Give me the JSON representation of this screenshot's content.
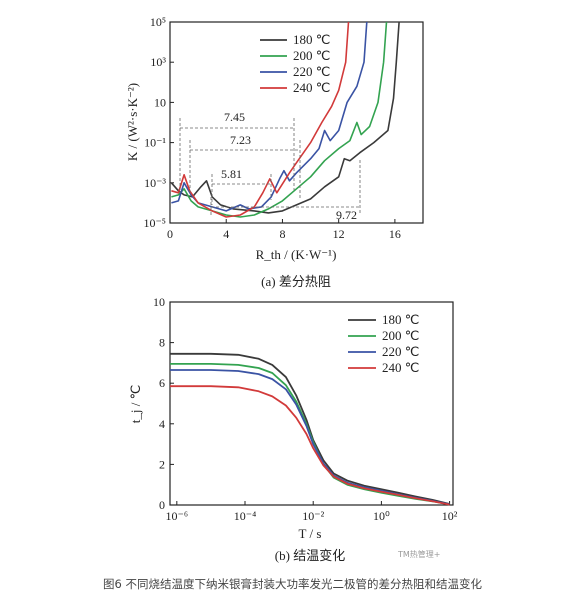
{
  "chart_data": [
    {
      "type": "line",
      "panel_caption": "(a) 差分热阻",
      "xlabel": "R_th / (K·W⁻¹)",
      "ylabel": "K / (W²·s·K⁻²)",
      "xlim": [
        0,
        18
      ],
      "ylim_log10": [
        -5,
        5
      ],
      "x_ticks": [
        "0",
        "4",
        "8",
        "12",
        "16"
      ],
      "y_ticks": [
        "10⁻⁵",
        "10⁻³",
        "10⁻¹",
        "10",
        "10³",
        "10⁵"
      ],
      "legend_position": "top-right",
      "series": [
        {
          "name": "180 ℃",
          "color": "#3a3a3a",
          "points": [
            [
              0.1,
              -3.0
            ],
            [
              0.6,
              -3.4
            ],
            [
              1.0,
              -3.6
            ],
            [
              1.6,
              -3.7
            ],
            [
              2.2,
              -3.2
            ],
            [
              2.6,
              -2.9
            ],
            [
              3.0,
              -3.7
            ],
            [
              3.6,
              -4.1
            ],
            [
              4.5,
              -4.3
            ],
            [
              6.0,
              -4.4
            ],
            [
              7.0,
              -4.5
            ],
            [
              8.0,
              -4.4
            ],
            [
              9.0,
              -4.1
            ],
            [
              10.0,
              -3.8
            ],
            [
              11.0,
              -3.2
            ],
            [
              12.0,
              -2.7
            ],
            [
              12.4,
              -1.8
            ],
            [
              12.8,
              -1.9
            ],
            [
              13.5,
              -1.5
            ],
            [
              14.5,
              -1.0
            ],
            [
              15.5,
              -0.4
            ],
            [
              15.9,
              1.2
            ],
            [
              16.1,
              3.0
            ],
            [
              16.3,
              5.0
            ]
          ]
        },
        {
          "name": "200 ℃",
          "color": "#33a350",
          "points": [
            [
              0.1,
              -3.7
            ],
            [
              0.6,
              -3.6
            ],
            [
              1.0,
              -3.3
            ],
            [
              1.5,
              -3.9
            ],
            [
              2.0,
              -4.2
            ],
            [
              3.0,
              -4.4
            ],
            [
              4.0,
              -4.6
            ],
            [
              5.0,
              -4.7
            ],
            [
              6.0,
              -4.6
            ],
            [
              7.0,
              -4.3
            ],
            [
              8.0,
              -3.9
            ],
            [
              9.0,
              -3.3
            ],
            [
              10.0,
              -2.7
            ],
            [
              11.0,
              -1.9
            ],
            [
              12.0,
              -1.3
            ],
            [
              12.8,
              -0.9
            ],
            [
              13.3,
              0.0
            ],
            [
              13.6,
              -0.6
            ],
            [
              14.2,
              -0.2
            ],
            [
              14.8,
              1.0
            ],
            [
              15.2,
              3.0
            ],
            [
              15.4,
              5.0
            ]
          ]
        },
        {
          "name": "220 ℃",
          "color": "#3a53a4",
          "points": [
            [
              0.1,
              -4.0
            ],
            [
              0.6,
              -3.9
            ],
            [
              1.0,
              -3.0
            ],
            [
              1.5,
              -3.6
            ],
            [
              2.0,
              -4.0
            ],
            [
              3.0,
              -4.2
            ],
            [
              4.0,
              -4.4
            ],
            [
              5.0,
              -4.1
            ],
            [
              5.6,
              -4.3
            ],
            [
              6.5,
              -4.2
            ],
            [
              7.2,
              -3.7
            ],
            [
              7.8,
              -2.8
            ],
            [
              8.1,
              -2.4
            ],
            [
              8.5,
              -2.9
            ],
            [
              9.0,
              -2.5
            ],
            [
              10.0,
              -1.8
            ],
            [
              10.6,
              -1.3
            ],
            [
              11.0,
              -0.4
            ],
            [
              11.4,
              -0.9
            ],
            [
              12.0,
              -0.4
            ],
            [
              12.6,
              1.0
            ],
            [
              13.3,
              1.8
            ],
            [
              13.8,
              3.0
            ],
            [
              14.0,
              5.0
            ]
          ]
        },
        {
          "name": "240 ℃",
          "color": "#d23a3a",
          "points": [
            [
              0.1,
              -3.4
            ],
            [
              0.6,
              -3.5
            ],
            [
              1.0,
              -2.6
            ],
            [
              1.4,
              -3.4
            ],
            [
              2.0,
              -4.0
            ],
            [
              3.0,
              -4.4
            ],
            [
              4.0,
              -4.7
            ],
            [
              5.0,
              -4.6
            ],
            [
              6.0,
              -4.2
            ],
            [
              6.6,
              -3.5
            ],
            [
              7.1,
              -2.8
            ],
            [
              7.6,
              -3.5
            ],
            [
              8.5,
              -2.5
            ],
            [
              9.0,
              -2.0
            ],
            [
              9.5,
              -1.5
            ],
            [
              10.0,
              -1.0
            ],
            [
              10.8,
              0.0
            ],
            [
              11.5,
              0.8
            ],
            [
              12.0,
              1.6
            ],
            [
              12.5,
              3.0
            ],
            [
              12.7,
              5.0
            ]
          ]
        }
      ],
      "annotations": [
        "7.45",
        "7.23",
        "5.81",
        "9.72"
      ]
    },
    {
      "type": "line",
      "panel_caption": "(b) 结温变化",
      "xlabel": "T / s",
      "ylabel": "t_j / ℃",
      "x_log10": [
        -6.2,
        2.1
      ],
      "ylim": [
        0,
        10
      ],
      "x_ticks": [
        "10⁻⁶",
        "10⁻⁴",
        "10⁻²",
        "10⁰",
        "10²"
      ],
      "y_ticks": [
        "0",
        "2",
        "4",
        "6",
        "8",
        "10"
      ],
      "legend_position": "top-right",
      "series": [
        {
          "name": "180 ℃",
          "color": "#3a3a3a",
          "points": [
            [
              -6.2,
              7.45
            ],
            [
              -5.0,
              7.45
            ],
            [
              -4.2,
              7.4
            ],
            [
              -3.6,
              7.2
            ],
            [
              -3.2,
              6.9
            ],
            [
              -2.8,
              6.3
            ],
            [
              -2.5,
              5.4
            ],
            [
              -2.2,
              4.2
            ],
            [
              -2.0,
              3.2
            ],
            [
              -1.7,
              2.2
            ],
            [
              -1.4,
              1.55
            ],
            [
              -1.0,
              1.2
            ],
            [
              -0.5,
              0.95
            ],
            [
              0.0,
              0.78
            ],
            [
              0.5,
              0.6
            ],
            [
              1.0,
              0.42
            ],
            [
              1.5,
              0.25
            ],
            [
              2.0,
              0.05
            ]
          ]
        },
        {
          "name": "200 ℃",
          "color": "#33a350",
          "points": [
            [
              -6.2,
              6.95
            ],
            [
              -5.0,
              6.95
            ],
            [
              -4.2,
              6.9
            ],
            [
              -3.6,
              6.75
            ],
            [
              -3.2,
              6.5
            ],
            [
              -2.8,
              5.9
            ],
            [
              -2.5,
              5.1
            ],
            [
              -2.2,
              4.0
            ],
            [
              -2.0,
              3.1
            ],
            [
              -1.7,
              2.0
            ],
            [
              -1.4,
              1.35
            ],
            [
              -1.0,
              1.0
            ],
            [
              -0.5,
              0.78
            ],
            [
              0.0,
              0.6
            ],
            [
              0.5,
              0.45
            ],
            [
              1.0,
              0.3
            ],
            [
              1.5,
              0.18
            ],
            [
              2.0,
              0.03
            ]
          ]
        },
        {
          "name": "220 ℃",
          "color": "#3a53a4",
          "points": [
            [
              -6.2,
              6.65
            ],
            [
              -5.0,
              6.65
            ],
            [
              -4.2,
              6.6
            ],
            [
              -3.6,
              6.45
            ],
            [
              -3.2,
              6.2
            ],
            [
              -2.8,
              5.7
            ],
            [
              -2.5,
              4.95
            ],
            [
              -2.2,
              3.9
            ],
            [
              -2.0,
              3.0
            ],
            [
              -1.7,
              2.05
            ],
            [
              -1.4,
              1.45
            ],
            [
              -1.0,
              1.1
            ],
            [
              -0.5,
              0.87
            ],
            [
              0.0,
              0.7
            ],
            [
              0.5,
              0.52
            ],
            [
              1.0,
              0.36
            ],
            [
              1.5,
              0.2
            ],
            [
              2.0,
              0.04
            ]
          ]
        },
        {
          "name": "240 ℃",
          "color": "#d23a3a",
          "points": [
            [
              -6.2,
              5.85
            ],
            [
              -5.0,
              5.85
            ],
            [
              -4.2,
              5.8
            ],
            [
              -3.6,
              5.6
            ],
            [
              -3.2,
              5.35
            ],
            [
              -2.8,
              4.9
            ],
            [
              -2.5,
              4.3
            ],
            [
              -2.2,
              3.5
            ],
            [
              -2.0,
              2.8
            ],
            [
              -1.7,
              1.95
            ],
            [
              -1.4,
              1.4
            ],
            [
              -1.0,
              1.05
            ],
            [
              -0.5,
              0.82
            ],
            [
              0.0,
              0.65
            ],
            [
              0.5,
              0.5
            ],
            [
              1.0,
              0.33
            ],
            [
              1.5,
              0.18
            ],
            [
              2.0,
              0.02
            ]
          ]
        }
      ]
    }
  ],
  "figure_caption": "图6 不同烧结温度下纳米银膏封装大功率发光二极管的差分热阻和结温变化",
  "watermark": "TM热管理+"
}
